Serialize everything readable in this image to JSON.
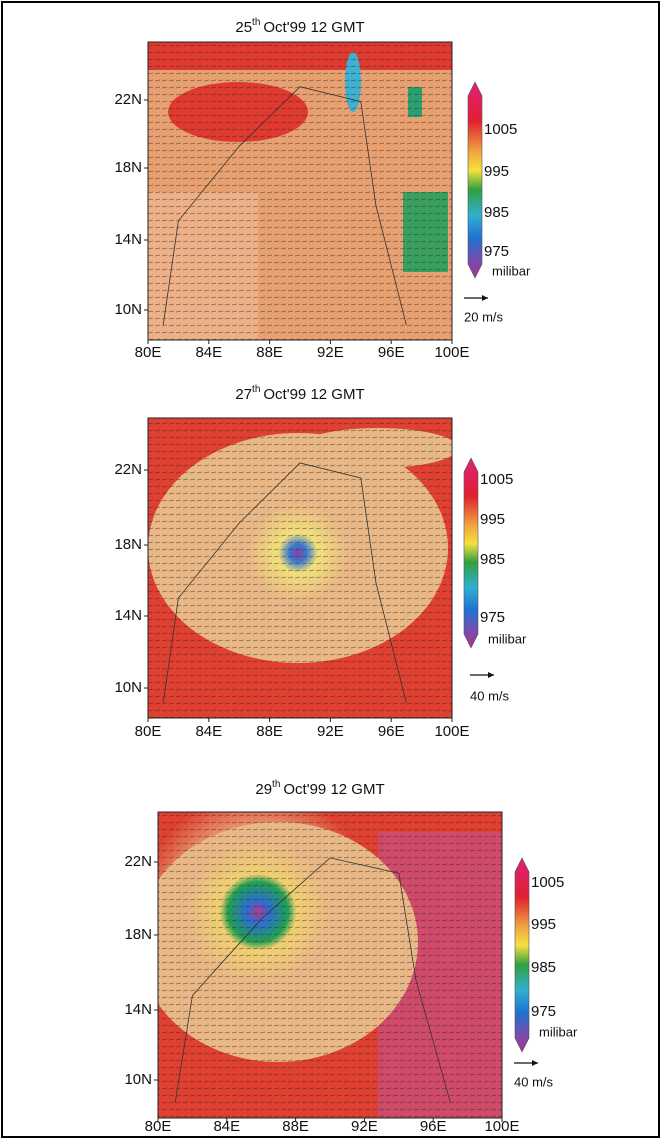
{
  "panels": [
    {
      "title_day": "25",
      "title_sup": "th",
      "title_rest": "Oct'99  12 GMT",
      "yticks": [
        "22N",
        "18N",
        "14N",
        "10N"
      ],
      "xticks": [
        "80E",
        "84E",
        "88E",
        "92E",
        "96E",
        "100E"
      ],
      "colorbar": [
        "1005",
        "995",
        "985",
        "975"
      ],
      "unit": "milibar",
      "arrow_scale": "20 m/s"
    },
    {
      "title_day": "27",
      "title_sup": "th",
      "title_rest": "Oct'99  12 GMT",
      "yticks": [
        "22N",
        "18N",
        "14N",
        "10N"
      ],
      "xticks": [
        "80E",
        "84E",
        "88E",
        "92E",
        "96E",
        "100E"
      ],
      "colorbar": [
        "1005",
        "995",
        "985",
        "975"
      ],
      "unit": "milibar",
      "arrow_scale": "40 m/s"
    },
    {
      "title_day": "29",
      "title_sup": "th",
      "title_rest": "Oct'99  12 GMT",
      "yticks": [
        "22N",
        "18N",
        "14N",
        "10N"
      ],
      "xticks": [
        "80E",
        "84E",
        "88E",
        "92E",
        "96E",
        "100E"
      ],
      "colorbar": [
        "1005",
        "995",
        "985",
        "975"
      ],
      "unit": "milibar",
      "arrow_scale": "40 m/s"
    }
  ]
}
